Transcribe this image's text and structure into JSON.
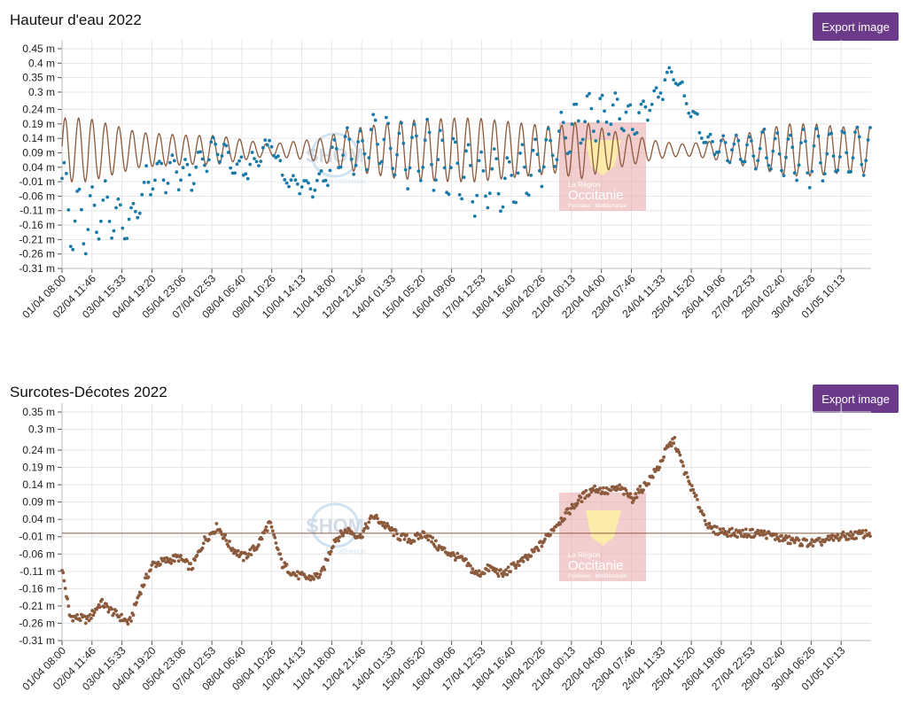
{
  "charts": [
    {
      "title": "Hauteur d'eau 2022",
      "export_label": "Export image"
    },
    {
      "title": "Surcotes-Décotes 2022",
      "export_label": "Export image"
    }
  ],
  "watermarks": {
    "shom_logo_text": "SHOM",
    "shom_tagline": "en référence",
    "region_line1": "La Région",
    "region_line2": "Occitanie",
    "region_line3": "Pyrénées · Méditerranée"
  },
  "colors": {
    "observed": "#1a7aa8",
    "predicted": "#8b5a3c",
    "surge": "#8b5a3c",
    "button": "#6b3b8a",
    "grid": "#e6e6e6"
  },
  "chart_data": [
    {
      "type": "line",
      "title": "Hauteur d'eau 2022",
      "x_tick_labels": [
        "01/04 08:00",
        "02/04 11:46",
        "03/04 15:33",
        "04/04 19:20",
        "05/04 23:06",
        "07/04 02:53",
        "08/04 06:40",
        "09/04 10:26",
        "10/04 14:13",
        "11/04 18:00",
        "12/04 21:46",
        "14/04 01:33",
        "15/04 05:20",
        "16/04 09:06",
        "17/04 12:53",
        "18/04 16:40",
        "19/04 20:26",
        "21/04 00:13",
        "22/04 04:00",
        "23/04 07:46",
        "24/04 11:33",
        "25/04 15:20",
        "26/04 19:06",
        "27/04 22:53",
        "29/04 02:40",
        "30/04 06:26",
        "01/05 10:13"
      ],
      "y_tick_labels": [
        "0.45 m",
        "0.4 m",
        "0.35 m",
        "0.3 m",
        "0.24 m",
        "0.19 m",
        "0.14 m",
        "0.09 m",
        "0.04 m",
        "-0.01 m",
        "-0.06 m",
        "-0.11 m",
        "-0.16 m",
        "-0.21 m",
        "-0.26 m",
        "-0.31 m"
      ],
      "y_ticks": [
        0.45,
        0.4,
        0.35,
        0.3,
        0.24,
        0.19,
        0.14,
        0.09,
        0.04,
        -0.01,
        -0.06,
        -0.11,
        -0.16,
        -0.21,
        -0.26,
        -0.31
      ],
      "x_range_days": [
        0,
        31.2
      ],
      "series": [
        {
          "role": "predicted",
          "style": "line",
          "tide_period_hours": 12.42,
          "mean": 0.1,
          "amplitude_days": [
            0,
            1,
            3,
            5,
            6,
            8,
            9,
            10,
            11,
            13,
            15,
            16,
            17,
            18,
            19,
            20,
            21,
            22,
            23,
            24,
            25,
            26,
            27,
            28,
            29,
            30,
            31.2
          ],
          "amplitude_values": [
            0.11,
            0.11,
            0.06,
            0.05,
            0.05,
            0.02,
            0.03,
            0.04,
            0.07,
            0.1,
            0.11,
            0.11,
            0.1,
            0.09,
            0.08,
            0.1,
            0.07,
            0.05,
            0.03,
            0.02,
            0.03,
            0.05,
            0.07,
            0.09,
            0.09,
            0.08,
            0.08
          ]
        },
        {
          "role": "observed",
          "style": "points",
          "derived_from": "predicted + surge"
        }
      ]
    },
    {
      "type": "scatter",
      "title": "Surcotes-Décotes 2022",
      "x_tick_labels": [
        "01/04 08:00",
        "02/04 11:46",
        "03/04 15:33",
        "04/04 19:20",
        "05/04 23:06",
        "07/04 02:53",
        "08/04 06:40",
        "09/04 10:26",
        "10/04 14:13",
        "11/04 18:00",
        "12/04 21:46",
        "14/04 01:33",
        "15/04 05:20",
        "16/04 09:06",
        "17/04 12:53",
        "18/04 16:40",
        "19/04 20:26",
        "21/04 00:13",
        "22/04 04:00",
        "23/04 07:46",
        "24/04 11:33",
        "25/04 15:20",
        "26/04 19:06",
        "27/04 22:53",
        "29/04 02:40",
        "30/04 06:26",
        "01/05 10:13"
      ],
      "y_tick_labels": [
        "0.35 m",
        "0.3 m",
        "0.24 m",
        "0.19 m",
        "0.14 m",
        "0.09 m",
        "0.04 m",
        "-0.01 m",
        "-0.06 m",
        "-0.11 m",
        "-0.16 m",
        "-0.21 m",
        "-0.26 m",
        "-0.31 m"
      ],
      "y_ticks": [
        0.35,
        0.3,
        0.24,
        0.19,
        0.14,
        0.09,
        0.04,
        -0.01,
        -0.06,
        -0.11,
        -0.16,
        -0.21,
        -0.26,
        -0.31
      ],
      "reference_line": 0.0,
      "x_range_days": [
        0,
        31.2
      ],
      "series": [
        {
          "role": "surge",
          "style": "points",
          "sample_step_hours": 1,
          "trend_days": [
            0,
            0.3,
            1,
            1.5,
            2,
            2.6,
            3,
            3.5,
            4,
            4.5,
            5,
            5.5,
            6,
            6.5,
            7,
            7.5,
            8,
            8.5,
            9,
            9.5,
            10,
            10.5,
            11,
            11.5,
            12,
            12.5,
            13,
            13.5,
            14,
            14.5,
            15,
            15.5,
            16,
            16.5,
            17,
            17.5,
            18,
            18.5,
            19,
            19.5,
            20,
            20.5,
            21,
            21.5,
            22,
            22.5,
            23,
            23.3,
            23.6,
            24,
            24.5,
            25,
            26,
            27,
            28,
            29,
            30,
            31.2
          ],
          "trend_values": [
            -0.1,
            -0.24,
            -0.25,
            -0.2,
            -0.23,
            -0.26,
            -0.17,
            -0.09,
            -0.08,
            -0.07,
            -0.1,
            -0.02,
            0.02,
            -0.04,
            -0.07,
            -0.04,
            0.03,
            -0.09,
            -0.12,
            -0.13,
            -0.12,
            -0.02,
            0.01,
            -0.01,
            0.05,
            0.02,
            -0.01,
            -0.02,
            0.0,
            -0.04,
            -0.06,
            -0.08,
            -0.12,
            -0.1,
            -0.12,
            -0.09,
            -0.07,
            -0.03,
            0.02,
            0.06,
            0.1,
            0.13,
            0.12,
            0.13,
            0.1,
            0.14,
            0.19,
            0.24,
            0.27,
            0.18,
            0.09,
            0.01,
            0.0,
            0.0,
            -0.02,
            -0.03,
            -0.01,
            0.0
          ]
        }
      ]
    }
  ]
}
